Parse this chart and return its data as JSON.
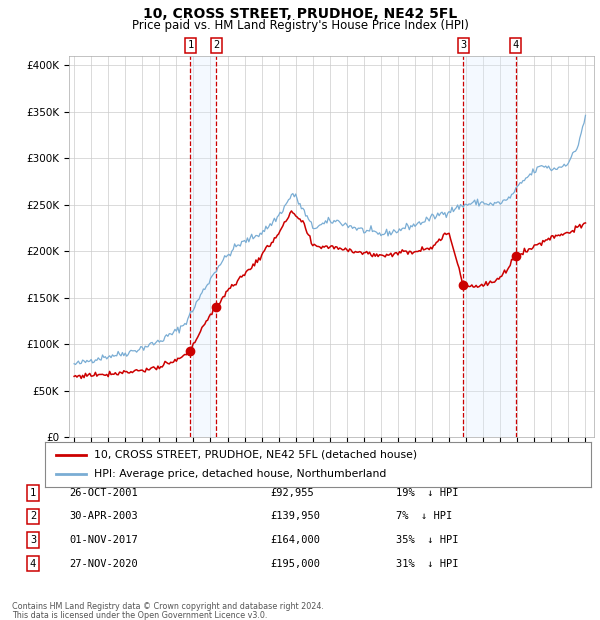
{
  "title": "10, CROSS STREET, PRUDHOE, NE42 5FL",
  "subtitle": "Price paid vs. HM Land Registry's House Price Index (HPI)",
  "legend_house": "10, CROSS STREET, PRUDHOE, NE42 5FL (detached house)",
  "legend_hpi": "HPI: Average price, detached house, Northumberland",
  "footer1": "Contains HM Land Registry data © Crown copyright and database right 2024.",
  "footer2": "This data is licensed under the Open Government Licence v3.0.",
  "transactions": [
    {
      "num": 1,
      "date": "26-OCT-2001",
      "price": 92955,
      "pct": "19%",
      "dir": "↓"
    },
    {
      "num": 2,
      "date": "30-APR-2003",
      "price": 139950,
      "pct": "7%",
      "dir": "↓"
    },
    {
      "num": 3,
      "date": "01-NOV-2017",
      "price": 164000,
      "pct": "35%",
      "dir": "↓"
    },
    {
      "num": 4,
      "date": "27-NOV-2020",
      "price": 195000,
      "pct": "31%",
      "dir": "↓"
    }
  ],
  "sale_dates_dec": [
    2001.82,
    2003.33,
    2017.84,
    2020.91
  ],
  "sale_prices": [
    92955,
    139950,
    164000,
    195000
  ],
  "vline_dates": [
    2001.82,
    2003.33,
    2017.84,
    2020.91
  ],
  "shade_ranges": [
    [
      2001.82,
      2003.33
    ],
    [
      2017.84,
      2020.91
    ]
  ],
  "house_color": "#cc0000",
  "hpi_color": "#7aadd4",
  "vline_color": "#cc0000",
  "shade_color": "#ddeeff",
  "grid_color": "#cccccc",
  "ylim": [
    0,
    410000
  ],
  "yticks": [
    0,
    50000,
    100000,
    150000,
    200000,
    250000,
    300000,
    350000,
    400000
  ],
  "ylabel_fmt": [
    "£0",
    "£50K",
    "£100K",
    "£150K",
    "£200K",
    "£250K",
    "£300K",
    "£350K",
    "£400K"
  ],
  "xlim_min": 1994.7,
  "xlim_max": 2025.5,
  "background_color": "#ffffff",
  "title_fontsize": 10,
  "subtitle_fontsize": 8.5,
  "hpi_anchors_t": [
    1995.0,
    1995.5,
    1996.0,
    1997.0,
    1998.0,
    1999.0,
    2000.0,
    2001.0,
    2001.5,
    2002.0,
    2002.5,
    2003.0,
    2003.5,
    2004.0,
    2004.5,
    2005.0,
    2005.5,
    2006.0,
    2006.5,
    2007.0,
    2007.5,
    2007.8,
    2008.0,
    2008.5,
    2009.0,
    2009.5,
    2010.0,
    2010.5,
    2011.0,
    2011.5,
    2012.0,
    2012.5,
    2013.0,
    2013.5,
    2014.0,
    2014.5,
    2015.0,
    2015.5,
    2016.0,
    2016.5,
    2017.0,
    2017.5,
    2018.0,
    2018.5,
    2019.0,
    2019.5,
    2020.0,
    2020.5,
    2021.0,
    2021.5,
    2022.0,
    2022.3,
    2022.6,
    2023.0,
    2023.5,
    2024.0,
    2024.5,
    2025.0
  ],
  "hpi_anchors_v": [
    78000,
    80000,
    83000,
    87000,
    90000,
    96000,
    103000,
    114000,
    122000,
    138000,
    155000,
    170000,
    185000,
    195000,
    205000,
    210000,
    215000,
    220000,
    228000,
    238000,
    252000,
    262000,
    258000,
    242000,
    225000,
    228000,
    232000,
    232000,
    228000,
    225000,
    222000,
    220000,
    218000,
    220000,
    222000,
    226000,
    228000,
    232000,
    236000,
    240000,
    243000,
    247000,
    250000,
    252000,
    252000,
    250000,
    252000,
    256000,
    268000,
    278000,
    286000,
    290000,
    292000,
    288000,
    290000,
    296000,
    310000,
    345000
  ],
  "house_anchors_t": [
    1995.0,
    1996.0,
    1997.0,
    1998.0,
    1999.0,
    2000.0,
    2001.0,
    2001.82,
    2002.5,
    2003.0,
    2003.33,
    2004.0,
    2005.0,
    2006.0,
    2007.0,
    2007.8,
    2008.5,
    2009.0,
    2010.0,
    2011.0,
    2012.0,
    2013.0,
    2014.0,
    2015.0,
    2016.0,
    2017.0,
    2017.84,
    2018.0,
    2018.5,
    2019.0,
    2020.0,
    2020.91,
    2021.0,
    2021.5,
    2022.0,
    2022.5,
    2023.0,
    2023.5,
    2024.0,
    2024.5,
    2025.0
  ],
  "house_anchors_v": [
    65000,
    67000,
    68000,
    70000,
    72000,
    75000,
    82000,
    92955,
    118000,
    130000,
    139950,
    158000,
    175000,
    195000,
    220000,
    242000,
    228000,
    205000,
    205000,
    202000,
    198000,
    195000,
    198000,
    200000,
    205000,
    220000,
    164000,
    165000,
    162000,
    163000,
    170000,
    195000,
    197000,
    200000,
    205000,
    210000,
    215000,
    218000,
    220000,
    225000,
    228000
  ]
}
